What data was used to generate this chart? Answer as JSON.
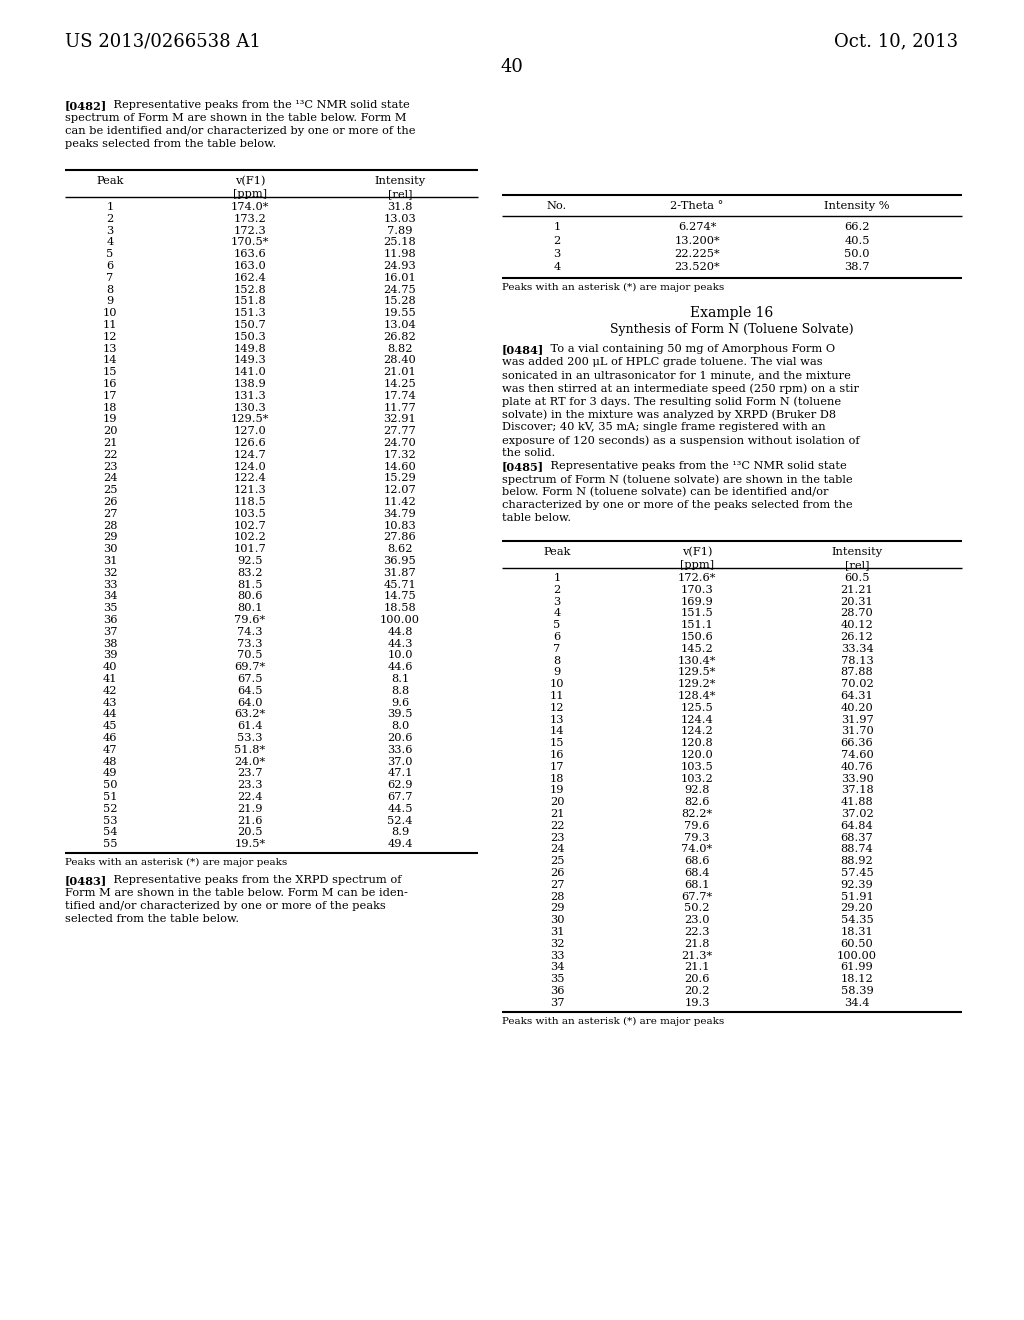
{
  "page_number": "40",
  "patent_number": "US 2013/0266538 A1",
  "patent_date": "Oct. 10, 2013",
  "background_color": "#ffffff",
  "text_color": "#000000",
  "table1_data": [
    [
      1,
      "174.0*",
      "31.8"
    ],
    [
      2,
      "173.2",
      "13.03"
    ],
    [
      3,
      "172.3",
      "7.89"
    ],
    [
      4,
      "170.5*",
      "25.18"
    ],
    [
      5,
      "163.6",
      "11.98"
    ],
    [
      6,
      "163.0",
      "24.93"
    ],
    [
      7,
      "162.4",
      "16.01"
    ],
    [
      8,
      "152.8",
      "24.75"
    ],
    [
      9,
      "151.8",
      "15.28"
    ],
    [
      10,
      "151.3",
      "19.55"
    ],
    [
      11,
      "150.7",
      "13.04"
    ],
    [
      12,
      "150.3",
      "26.82"
    ],
    [
      13,
      "149.8",
      "8.82"
    ],
    [
      14,
      "149.3",
      "28.40"
    ],
    [
      15,
      "141.0",
      "21.01"
    ],
    [
      16,
      "138.9",
      "14.25"
    ],
    [
      17,
      "131.3",
      "17.74"
    ],
    [
      18,
      "130.3",
      "11.77"
    ],
    [
      19,
      "129.5*",
      "32.91"
    ],
    [
      20,
      "127.0",
      "27.77"
    ],
    [
      21,
      "126.6",
      "24.70"
    ],
    [
      22,
      "124.7",
      "17.32"
    ],
    [
      23,
      "124.0",
      "14.60"
    ],
    [
      24,
      "122.4",
      "15.29"
    ],
    [
      25,
      "121.3",
      "12.07"
    ],
    [
      26,
      "118.5",
      "11.42"
    ],
    [
      27,
      "103.5",
      "34.79"
    ],
    [
      28,
      "102.7",
      "10.83"
    ],
    [
      29,
      "102.2",
      "27.86"
    ],
    [
      30,
      "101.7",
      "8.62"
    ],
    [
      31,
      "92.5",
      "36.95"
    ],
    [
      32,
      "83.2",
      "31.87"
    ],
    [
      33,
      "81.5",
      "45.71"
    ],
    [
      34,
      "80.6",
      "14.75"
    ],
    [
      35,
      "80.1",
      "18.58"
    ],
    [
      36,
      "79.6*",
      "100.00"
    ],
    [
      37,
      "74.3",
      "44.8"
    ],
    [
      38,
      "73.3",
      "44.3"
    ],
    [
      39,
      "70.5",
      "10.0"
    ],
    [
      40,
      "69.7*",
      "44.6"
    ],
    [
      41,
      "67.5",
      "8.1"
    ],
    [
      42,
      "64.5",
      "8.8"
    ],
    [
      43,
      "64.0",
      "9.6"
    ],
    [
      44,
      "63.2*",
      "39.5"
    ],
    [
      45,
      "61.4",
      "8.0"
    ],
    [
      46,
      "53.3",
      "20.6"
    ],
    [
      47,
      "51.8*",
      "33.6"
    ],
    [
      48,
      "24.0*",
      "37.0"
    ],
    [
      49,
      "23.7",
      "47.1"
    ],
    [
      50,
      "23.3",
      "62.9"
    ],
    [
      51,
      "22.4",
      "67.7"
    ],
    [
      52,
      "21.9",
      "44.5"
    ],
    [
      53,
      "21.6",
      "52.4"
    ],
    [
      54,
      "20.5",
      "8.9"
    ],
    [
      55,
      "19.5*",
      "49.4"
    ]
  ],
  "table1_footnote": "Peaks with an asterisk (*) are major peaks",
  "table2_data": [
    [
      1,
      "6.274*",
      "66.2"
    ],
    [
      2,
      "13.200*",
      "40.5"
    ],
    [
      3,
      "22.225*",
      "50.0"
    ],
    [
      4,
      "23.520*",
      "38.7"
    ]
  ],
  "table2_footnote": "Peaks with an asterisk (*) are major peaks",
  "example16_title": "Example 16",
  "example16_subtitle": "Synthesis of Form N (Toluene Solvate)",
  "table3_data": [
    [
      1,
      "172.6*",
      "60.5"
    ],
    [
      2,
      "170.3",
      "21.21"
    ],
    [
      3,
      "169.9",
      "20.31"
    ],
    [
      4,
      "151.5",
      "28.70"
    ],
    [
      5,
      "151.1",
      "40.12"
    ],
    [
      6,
      "150.6",
      "26.12"
    ],
    [
      7,
      "145.2",
      "33.34"
    ],
    [
      8,
      "130.4*",
      "78.13"
    ],
    [
      9,
      "129.5*",
      "87.88"
    ],
    [
      10,
      "129.2*",
      "70.02"
    ],
    [
      11,
      "128.4*",
      "64.31"
    ],
    [
      12,
      "125.5",
      "40.20"
    ],
    [
      13,
      "124.4",
      "31.97"
    ],
    [
      14,
      "124.2",
      "31.70"
    ],
    [
      15,
      "120.8",
      "66.36"
    ],
    [
      16,
      "120.0",
      "74.60"
    ],
    [
      17,
      "103.5",
      "40.76"
    ],
    [
      18,
      "103.2",
      "33.90"
    ],
    [
      19,
      "92.8",
      "37.18"
    ],
    [
      20,
      "82.6",
      "41.88"
    ],
    [
      21,
      "82.2*",
      "37.02"
    ],
    [
      22,
      "79.6",
      "64.84"
    ],
    [
      23,
      "79.3",
      "68.37"
    ],
    [
      24,
      "74.0*",
      "88.74"
    ],
    [
      25,
      "68.6",
      "88.92"
    ],
    [
      26,
      "68.4",
      "57.45"
    ],
    [
      27,
      "68.1",
      "92.39"
    ],
    [
      28,
      "67.7*",
      "51.91"
    ],
    [
      29,
      "50.2",
      "29.20"
    ],
    [
      30,
      "23.0",
      "54.35"
    ],
    [
      31,
      "22.3",
      "18.31"
    ],
    [
      32,
      "21.8",
      "60.50"
    ],
    [
      33,
      "21.3*",
      "100.00"
    ],
    [
      34,
      "21.1",
      "61.99"
    ],
    [
      35,
      "20.6",
      "18.12"
    ],
    [
      36,
      "20.2",
      "58.39"
    ],
    [
      37,
      "19.3",
      "34.4"
    ]
  ],
  "table3_footnote": "Peaks with an asterisk (*) are major peaks"
}
